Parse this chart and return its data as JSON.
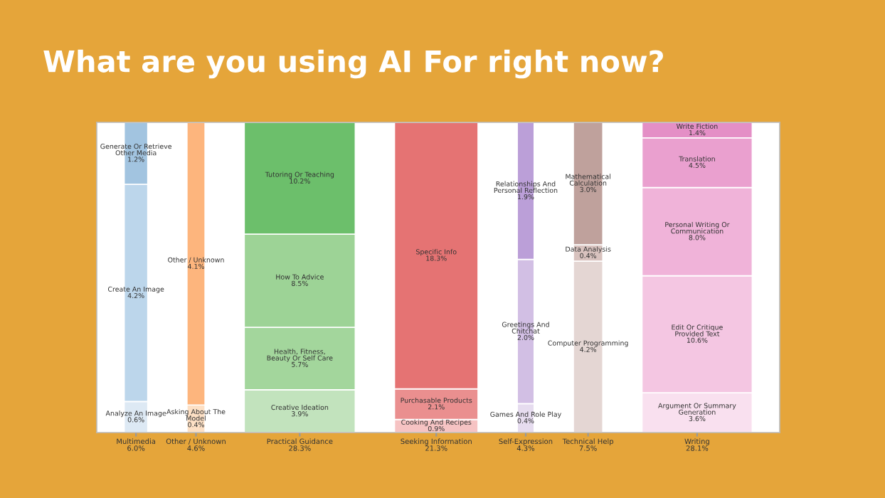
{
  "chart_data": {
    "type": "other",
    "title": "What are you using AI For right now?",
    "categories": [
      "Multimedia",
      "Other / Unknown",
      "Practical Guidance",
      "Seeking Information",
      "Self-Expression",
      "Technical Help",
      "Writing"
    ],
    "values": [
      6.0,
      4.6,
      28.3,
      21.3,
      4.3,
      7.5,
      28.1
    ],
    "value_labels": [
      "6.0%",
      "4.6%",
      "28.3%",
      "21.3%",
      "4.3%",
      "7.5%",
      "28.1%"
    ],
    "series": [
      {
        "name": "Analyze An Image",
        "color": "#dde9f4",
        "values": [
          0.6,
          null,
          null,
          null,
          null,
          null,
          null
        ],
        "value_labels": [
          "0.6%",
          null,
          null,
          null,
          null,
          null,
          null
        ]
      },
      {
        "name": "Create An Image",
        "color": "#bcd6eb",
        "values": [
          4.2,
          null,
          null,
          null,
          null,
          null,
          null
        ],
        "value_labels": [
          "4.2%",
          null,
          null,
          null,
          null,
          null,
          null
        ]
      },
      {
        "name": "Generate Or Retrieve\nOther Media",
        "color": "#a2c4e0",
        "values": [
          1.2,
          null,
          null,
          null,
          null,
          null,
          null
        ],
        "value_labels": [
          "1.2%",
          null,
          null,
          null,
          null,
          null,
          null
        ]
      },
      {
        "name": "Asking About The\nModel",
        "color": "#fde0c5",
        "values": [
          null,
          0.4,
          null,
          null,
          null,
          null,
          null
        ],
        "value_labels": [
          null,
          "0.4%",
          null,
          null,
          null,
          null,
          null
        ]
      },
      {
        "name": "Other / Unknown",
        "color": "#fdb57d",
        "values": [
          null,
          4.1,
          null,
          null,
          null,
          null,
          null
        ],
        "value_labels": [
          null,
          "4.1%",
          null,
          null,
          null,
          null,
          null
        ]
      },
      {
        "name": "Creative Ideation",
        "color": "#c2e3bd",
        "values": [
          null,
          null,
          3.9,
          null,
          null,
          null,
          null
        ],
        "value_labels": [
          null,
          null,
          "3.9%",
          null,
          null,
          null,
          null
        ]
      },
      {
        "name": "Health, Fitness,\nBeauty Or Self Care",
        "color": "#a3d69c",
        "values": [
          null,
          null,
          5.7,
          null,
          null,
          null,
          null
        ],
        "value_labels": [
          null,
          null,
          "5.7%",
          null,
          null,
          null,
          null
        ]
      },
      {
        "name": "How To Advice",
        "color": "#9dd396",
        "values": [
          null,
          null,
          8.5,
          null,
          null,
          null,
          null
        ],
        "value_labels": [
          null,
          null,
          "8.5%",
          null,
          null,
          null,
          null
        ]
      },
      {
        "name": "Tutoring Or Teaching",
        "color": "#6cbf6b",
        "values": [
          null,
          null,
          10.2,
          null,
          null,
          null,
          null
        ],
        "value_labels": [
          null,
          null,
          "10.2%",
          null,
          null,
          null,
          null
        ]
      },
      {
        "name": "Cooking And Recipes",
        "color": "#f6c3c3",
        "values": [
          null,
          null,
          null,
          0.9,
          null,
          null,
          null
        ],
        "value_labels": [
          null,
          null,
          null,
          "0.9%",
          null,
          null,
          null
        ]
      },
      {
        "name": "Purchasable Products",
        "color": "#ea8f8f",
        "values": [
          null,
          null,
          null,
          2.1,
          null,
          null,
          null
        ],
        "value_labels": [
          null,
          null,
          null,
          "2.1%",
          null,
          null,
          null
        ]
      },
      {
        "name": "Specific Info",
        "color": "#e57373",
        "values": [
          null,
          null,
          null,
          18.3,
          null,
          null,
          null
        ],
        "value_labels": [
          null,
          null,
          null,
          "18.3%",
          null,
          null,
          null
        ]
      },
      {
        "name": "Games And Role Play",
        "color": "#e6dcef",
        "values": [
          null,
          null,
          null,
          null,
          0.4,
          null,
          null
        ],
        "value_labels": [
          null,
          null,
          null,
          null,
          "0.4%",
          null,
          null
        ]
      },
      {
        "name": "Greetings And\nChitchat",
        "color": "#d2bfe4",
        "values": [
          null,
          null,
          null,
          null,
          2.0,
          null,
          null
        ],
        "value_labels": [
          null,
          null,
          null,
          null,
          "2.0%",
          null,
          null
        ]
      },
      {
        "name": "Relationships And\nPersonal Reflection",
        "color": "#bb9fd8",
        "values": [
          null,
          null,
          null,
          null,
          1.9,
          null,
          null
        ],
        "value_labels": [
          null,
          null,
          null,
          null,
          "1.9%",
          null,
          null
        ]
      },
      {
        "name": "Computer Programming",
        "color": "#e4d6d3",
        "values": [
          null,
          null,
          null,
          null,
          null,
          4.2,
          null
        ],
        "value_labels": [
          null,
          null,
          null,
          null,
          null,
          "4.2%",
          null
        ]
      },
      {
        "name": "Data Analysis",
        "color": "#d8c2be",
        "values": [
          null,
          null,
          null,
          null,
          null,
          0.4,
          null
        ],
        "value_labels": [
          null,
          null,
          null,
          null,
          null,
          "0.4%",
          null
        ]
      },
      {
        "name": "Mathematical\nCalculation",
        "color": "#bfa19c",
        "values": [
          null,
          null,
          null,
          null,
          null,
          3.0,
          null
        ],
        "value_labels": [
          null,
          null,
          null,
          null,
          null,
          "3.0%",
          null
        ]
      },
      {
        "name": "Argument Or Summary\nGeneration",
        "color": "#f9e0ef",
        "values": [
          null,
          null,
          null,
          null,
          null,
          null,
          3.6
        ],
        "value_labels": [
          null,
          null,
          null,
          null,
          null,
          null,
          "3.6%"
        ]
      },
      {
        "name": "Edit Or Critique\nProvided Text",
        "color": "#f4c6e2",
        "values": [
          null,
          null,
          null,
          null,
          null,
          null,
          10.6
        ],
        "value_labels": [
          null,
          null,
          null,
          null,
          null,
          null,
          "10.6%"
        ]
      },
      {
        "name": "Personal Writing Or\nCommunication",
        "color": "#f0b3d9",
        "values": [
          null,
          null,
          null,
          null,
          null,
          null,
          8.0
        ],
        "value_labels": [
          null,
          null,
          null,
          null,
          null,
          null,
          "8.0%"
        ]
      },
      {
        "name": "Translation",
        "color": "#eaa0cf",
        "values": [
          null,
          null,
          null,
          null,
          null,
          null,
          4.5
        ],
        "value_labels": [
          null,
          null,
          null,
          null,
          null,
          null,
          "4.5%"
        ]
      },
      {
        "name": "Write Fiction",
        "color": "#e48fc6",
        "values": [
          null,
          null,
          null,
          null,
          null,
          null,
          1.4
        ],
        "value_labels": [
          null,
          null,
          null,
          null,
          null,
          null,
          "1.4%"
        ]
      }
    ]
  }
}
